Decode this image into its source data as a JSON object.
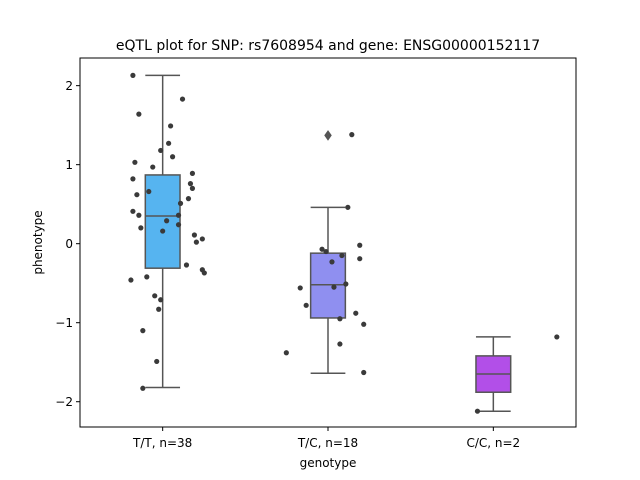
{
  "chart_data": {
    "type": "box",
    "title": "eQTL plot for SNP: rs7608954 and gene: ENSG00000152117",
    "xlabel": "genotype",
    "ylabel": "phenotype",
    "ylim": [
      -2.32,
      2.35
    ],
    "yticks": [
      2,
      1,
      0,
      -1,
      -2
    ],
    "categories": [
      "T/T, n=38",
      "T/C, n=18",
      "C/C, n=2"
    ],
    "colors": [
      "#56b4f0",
      "#8f8ff0",
      "#b24fe8"
    ],
    "point_color": "#3a3a3a",
    "box_edge_color": "#555555",
    "grid": false,
    "boxes": [
      {
        "q1": -0.31,
        "median": 0.35,
        "q3": 0.87,
        "whisker_low": -1.82,
        "whisker_high": 2.13,
        "outliers": []
      },
      {
        "q1": -0.94,
        "median": -0.52,
        "q3": -0.12,
        "whisker_low": -1.64,
        "whisker_high": 0.46,
        "outliers": [
          1.37
        ]
      },
      {
        "q1": -1.88,
        "median": -1.65,
        "q3": -1.42,
        "whisker_low": -2.12,
        "whisker_high": -1.18,
        "outliers": []
      }
    ],
    "points": [
      [
        {
          "dx": -0.15,
          "y": 2.13
        },
        {
          "dx": 0.1,
          "y": 1.83
        },
        {
          "dx": -0.12,
          "y": 1.64
        },
        {
          "dx": 0.04,
          "y": 1.49
        },
        {
          "dx": 0.03,
          "y": 1.27
        },
        {
          "dx": -0.01,
          "y": 1.18
        },
        {
          "dx": 0.05,
          "y": 1.1
        },
        {
          "dx": -0.14,
          "y": 1.03
        },
        {
          "dx": -0.05,
          "y": 0.97
        },
        {
          "dx": 0.15,
          "y": 0.89
        },
        {
          "dx": -0.15,
          "y": 0.82
        },
        {
          "dx": 0.14,
          "y": 0.76
        },
        {
          "dx": 0.15,
          "y": 0.7
        },
        {
          "dx": -0.07,
          "y": 0.66
        },
        {
          "dx": -0.13,
          "y": 0.62
        },
        {
          "dx": 0.13,
          "y": 0.57
        },
        {
          "dx": 0.09,
          "y": 0.51
        },
        {
          "dx": -0.15,
          "y": 0.41
        },
        {
          "dx": -0.12,
          "y": 0.36
        },
        {
          "dx": 0.02,
          "y": 0.29
        },
        {
          "dx": 0.08,
          "y": 0.24
        },
        {
          "dx": -0.11,
          "y": 0.2
        },
        {
          "dx": 0.0,
          "y": 0.16
        },
        {
          "dx": 0.16,
          "y": 0.11
        },
        {
          "dx": 0.2,
          "y": 0.06
        },
        {
          "dx": 0.17,
          "y": 0.02
        },
        {
          "dx": 0.12,
          "y": -0.27
        },
        {
          "dx": 0.2,
          "y": -0.33
        },
        {
          "dx": 0.21,
          "y": -0.37
        },
        {
          "dx": -0.08,
          "y": -0.42
        },
        {
          "dx": -0.16,
          "y": -0.46
        },
        {
          "dx": -0.04,
          "y": -0.66
        },
        {
          "dx": -0.01,
          "y": -0.71
        },
        {
          "dx": -0.02,
          "y": -0.83
        },
        {
          "dx": -0.1,
          "y": -1.1
        },
        {
          "dx": -0.03,
          "y": -1.49
        },
        {
          "dx": -0.1,
          "y": -1.83
        },
        {
          "dx": 0.08,
          "y": 0.36
        }
      ],
      [
        {
          "dx": 0.12,
          "y": 1.38
        },
        {
          "dx": 0.1,
          "y": 0.46
        },
        {
          "dx": 0.16,
          "y": -0.02
        },
        {
          "dx": -0.03,
          "y": -0.07
        },
        {
          "dx": -0.01,
          "y": -0.1
        },
        {
          "dx": 0.07,
          "y": -0.15
        },
        {
          "dx": 0.16,
          "y": -0.19
        },
        {
          "dx": 0.02,
          "y": -0.23
        },
        {
          "dx": 0.09,
          "y": -0.51
        },
        {
          "dx": -0.14,
          "y": -0.56
        },
        {
          "dx": -0.11,
          "y": -0.78
        },
        {
          "dx": 0.14,
          "y": -0.88
        },
        {
          "dx": 0.06,
          "y": -0.95
        },
        {
          "dx": 0.18,
          "y": -1.02
        },
        {
          "dx": 0.06,
          "y": -1.27
        },
        {
          "dx": -0.21,
          "y": -1.38
        },
        {
          "dx": 0.18,
          "y": -1.63
        },
        {
          "dx": 0.03,
          "y": -0.55
        }
      ],
      [
        {
          "dx": 0.32,
          "y": -1.18
        },
        {
          "dx": -0.08,
          "y": -2.12
        }
      ]
    ]
  }
}
